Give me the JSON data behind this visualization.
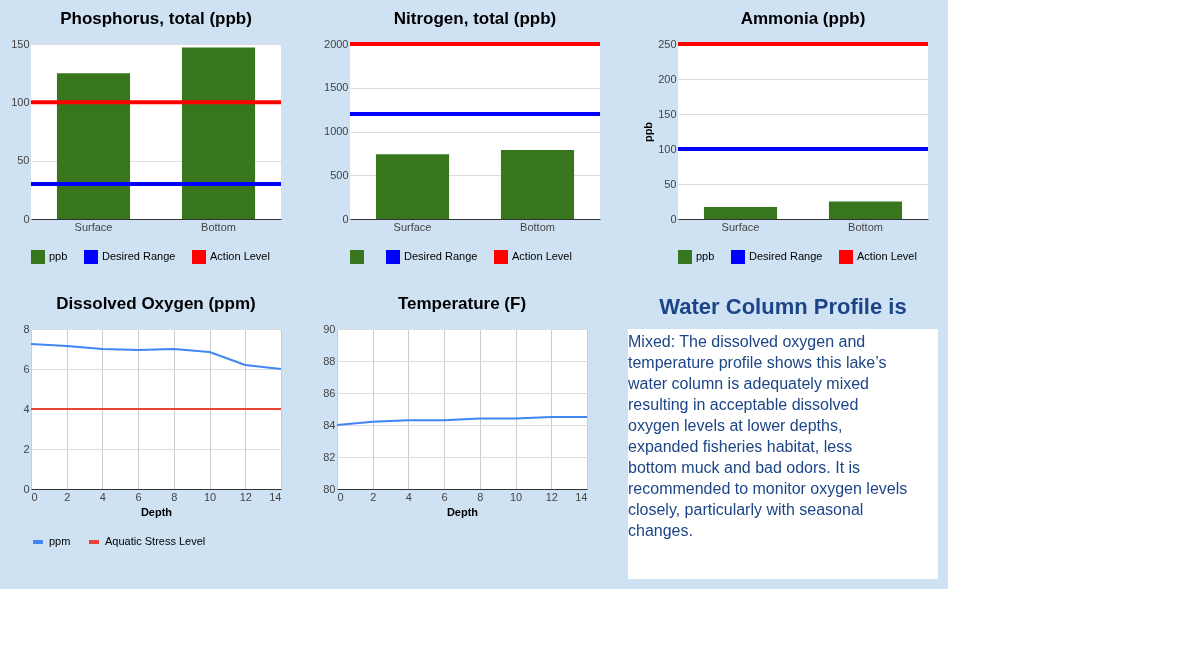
{
  "chart_data": [
    {
      "type": "bar",
      "title": "Phosphorus, total (ppb)",
      "categories": [
        "Surface",
        "Bottom"
      ],
      "series": [
        {
          "name": "ppb",
          "color": "#38761d",
          "values": [
            125,
            147
          ]
        }
      ],
      "ylim": [
        0,
        150
      ],
      "yticks": [
        0,
        50,
        100,
        150
      ],
      "grid": "y",
      "legend": "bottom",
      "ref_lines": [
        {
          "axis": "y",
          "value": 30,
          "label": "Desired Range",
          "color": "#0000ff"
        },
        {
          "axis": "y",
          "value": 100,
          "label": "Action Level",
          "color": "#ff0000"
        }
      ]
    },
    {
      "type": "bar",
      "title": "Nitrogen, total (ppb)",
      "categories": [
        "Surface",
        "Bottom"
      ],
      "series": [
        {
          "color": "#38761d",
          "values": [
            740,
            790
          ]
        }
      ],
      "ylim": [
        0,
        2000
      ],
      "yticks": [
        0,
        500,
        1000,
        1500,
        2000
      ],
      "grid": "y",
      "legend": "bottom",
      "ref_lines": [
        {
          "axis": "y",
          "value": 1200,
          "label": "Desired Range",
          "color": "#0000ff"
        },
        {
          "axis": "y",
          "value": 2000,
          "label": "Action Level",
          "color": "#ff0000"
        }
      ]
    },
    {
      "type": "bar",
      "title": "Ammonia (ppb)",
      "ylabel": "ppb",
      "categories": [
        "Surface",
        "Bottom"
      ],
      "series": [
        {
          "name": "ppb",
          "color": "#38761d",
          "values": [
            17,
            25
          ]
        }
      ],
      "ylim": [
        0,
        250
      ],
      "yticks": [
        0,
        50,
        100,
        150,
        200,
        250
      ],
      "grid": "y",
      "legend": "bottom",
      "ref_lines": [
        {
          "axis": "y",
          "value": 100,
          "label": "Desired Range",
          "color": "#0000ff"
        },
        {
          "axis": "y",
          "value": 250,
          "label": "Action Level",
          "color": "#ff0000"
        }
      ]
    },
    {
      "type": "line",
      "title": "Dissolved Oxygen (ppm)",
      "xlabel": "Depth",
      "x": [
        0,
        2,
        4,
        6,
        8,
        10,
        12,
        14
      ],
      "series": [
        {
          "name": "ppm",
          "color": "#4285f4",
          "values": [
            7.25,
            7.15,
            7.0,
            6.95,
            7.0,
            6.85,
            6.2,
            6.0
          ]
        }
      ],
      "xlim": [
        0,
        14
      ],
      "xticks": [
        0,
        2,
        4,
        6,
        8,
        10,
        12,
        14
      ],
      "ylim": [
        0,
        8
      ],
      "yticks": [
        0,
        2,
        4,
        6,
        8
      ],
      "grid": true,
      "legend": "bottom",
      "ref_lines": [
        {
          "axis": "y",
          "value": 4,
          "label": "Aquatic Stress Level",
          "color": "#ea4335"
        }
      ]
    },
    {
      "type": "line",
      "title": "Temperature (F)",
      "xlabel": "Depth",
      "x": [
        0,
        2,
        4,
        6,
        8,
        10,
        12,
        14
      ],
      "series": [
        {
          "color": "#4285f4",
          "values": [
            84.0,
            84.2,
            84.3,
            84.3,
            84.4,
            84.4,
            84.5,
            84.5
          ]
        }
      ],
      "xlim": [
        0,
        14
      ],
      "xticks": [
        0,
        2,
        4,
        6,
        8,
        10,
        12,
        14
      ],
      "ylim": [
        80,
        90
      ],
      "yticks": [
        80,
        82,
        84,
        86,
        88,
        90
      ],
      "grid": true
    },
    {
      "type": "other",
      "title": "Water Column Profile is",
      "annotations": [
        "Mixed: The dissolved oxygen and temperature profile shows this lake’s water column is adequately mixed resulting in acceptable dissolved oxygen levels at lower depths, expanded fisheries habitat, less bottom muck and bad odors. It is recommended to monitor oxygen levels closely, particularly with seasonal changes."
      ]
    }
  ]
}
